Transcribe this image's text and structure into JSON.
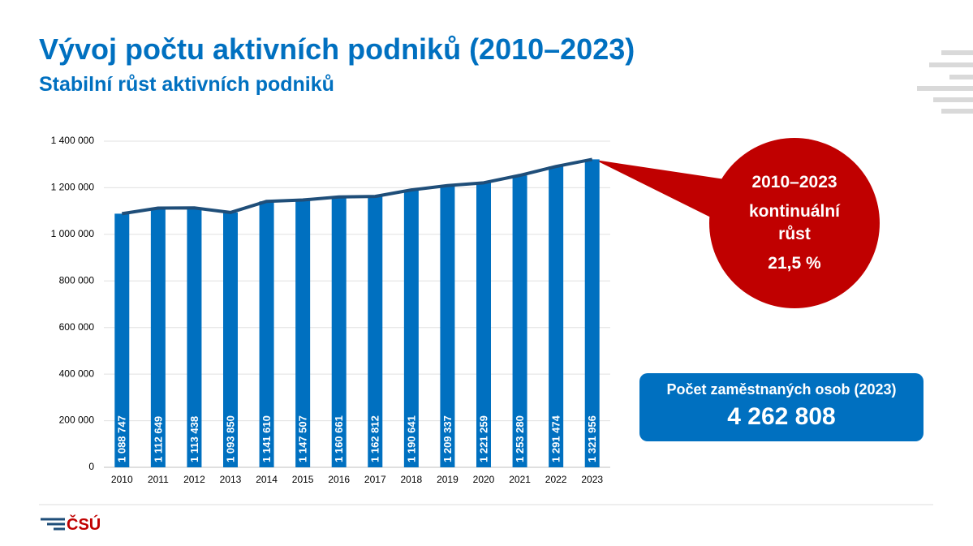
{
  "header": {
    "title": "Vývoj počtu aktivních podniků (2010–2023)",
    "subtitle": "Stabilní růst aktivních podniků"
  },
  "chart_data": {
    "type": "bar",
    "categories": [
      "2010",
      "2011",
      "2012",
      "2013",
      "2014",
      "2015",
      "2016",
      "2017",
      "2018",
      "2019",
      "2020",
      "2021",
      "2022",
      "2023"
    ],
    "values": [
      1088747,
      1112649,
      1113438,
      1093850,
      1141610,
      1147507,
      1160661,
      1162812,
      1190641,
      1209337,
      1221259,
      1253280,
      1291474,
      1321956
    ],
    "value_labels": [
      "1 088 747",
      "1 112 649",
      "1 113 438",
      "1 093 850",
      "1 141 610",
      "1 147 507",
      "1 160 661",
      "1 162 812",
      "1 190 641",
      "1 209 337",
      "1 221 259",
      "1 253 280",
      "1 291 474",
      "1 321 956"
    ],
    "color": "#0070c0",
    "line_color": "#1f4e79",
    "ylim": [
      0,
      1400000
    ],
    "yticks": [
      0,
      {
        "value": 200000,
        "label": "200 000"
      },
      {
        "value": 400000,
        "label": "400 000"
      },
      {
        "value": 600000,
        "label": "600 000"
      },
      {
        "value": 800000,
        "label": "800 000"
      },
      {
        "value": 1000000,
        "label": "1 000 000"
      },
      {
        "value": 1200000,
        "label": "1 200 000"
      },
      {
        "value": 1400000,
        "label": "1 400 000"
      }
    ],
    "grid": true
  },
  "callout": {
    "period": "2010–2023",
    "text": "kontinuální růst",
    "growth": "21,5 %"
  },
  "box": {
    "label": "Počet zaměstnaných osob (2023)",
    "value": "4 262 808"
  },
  "logo": "ČSÚ"
}
